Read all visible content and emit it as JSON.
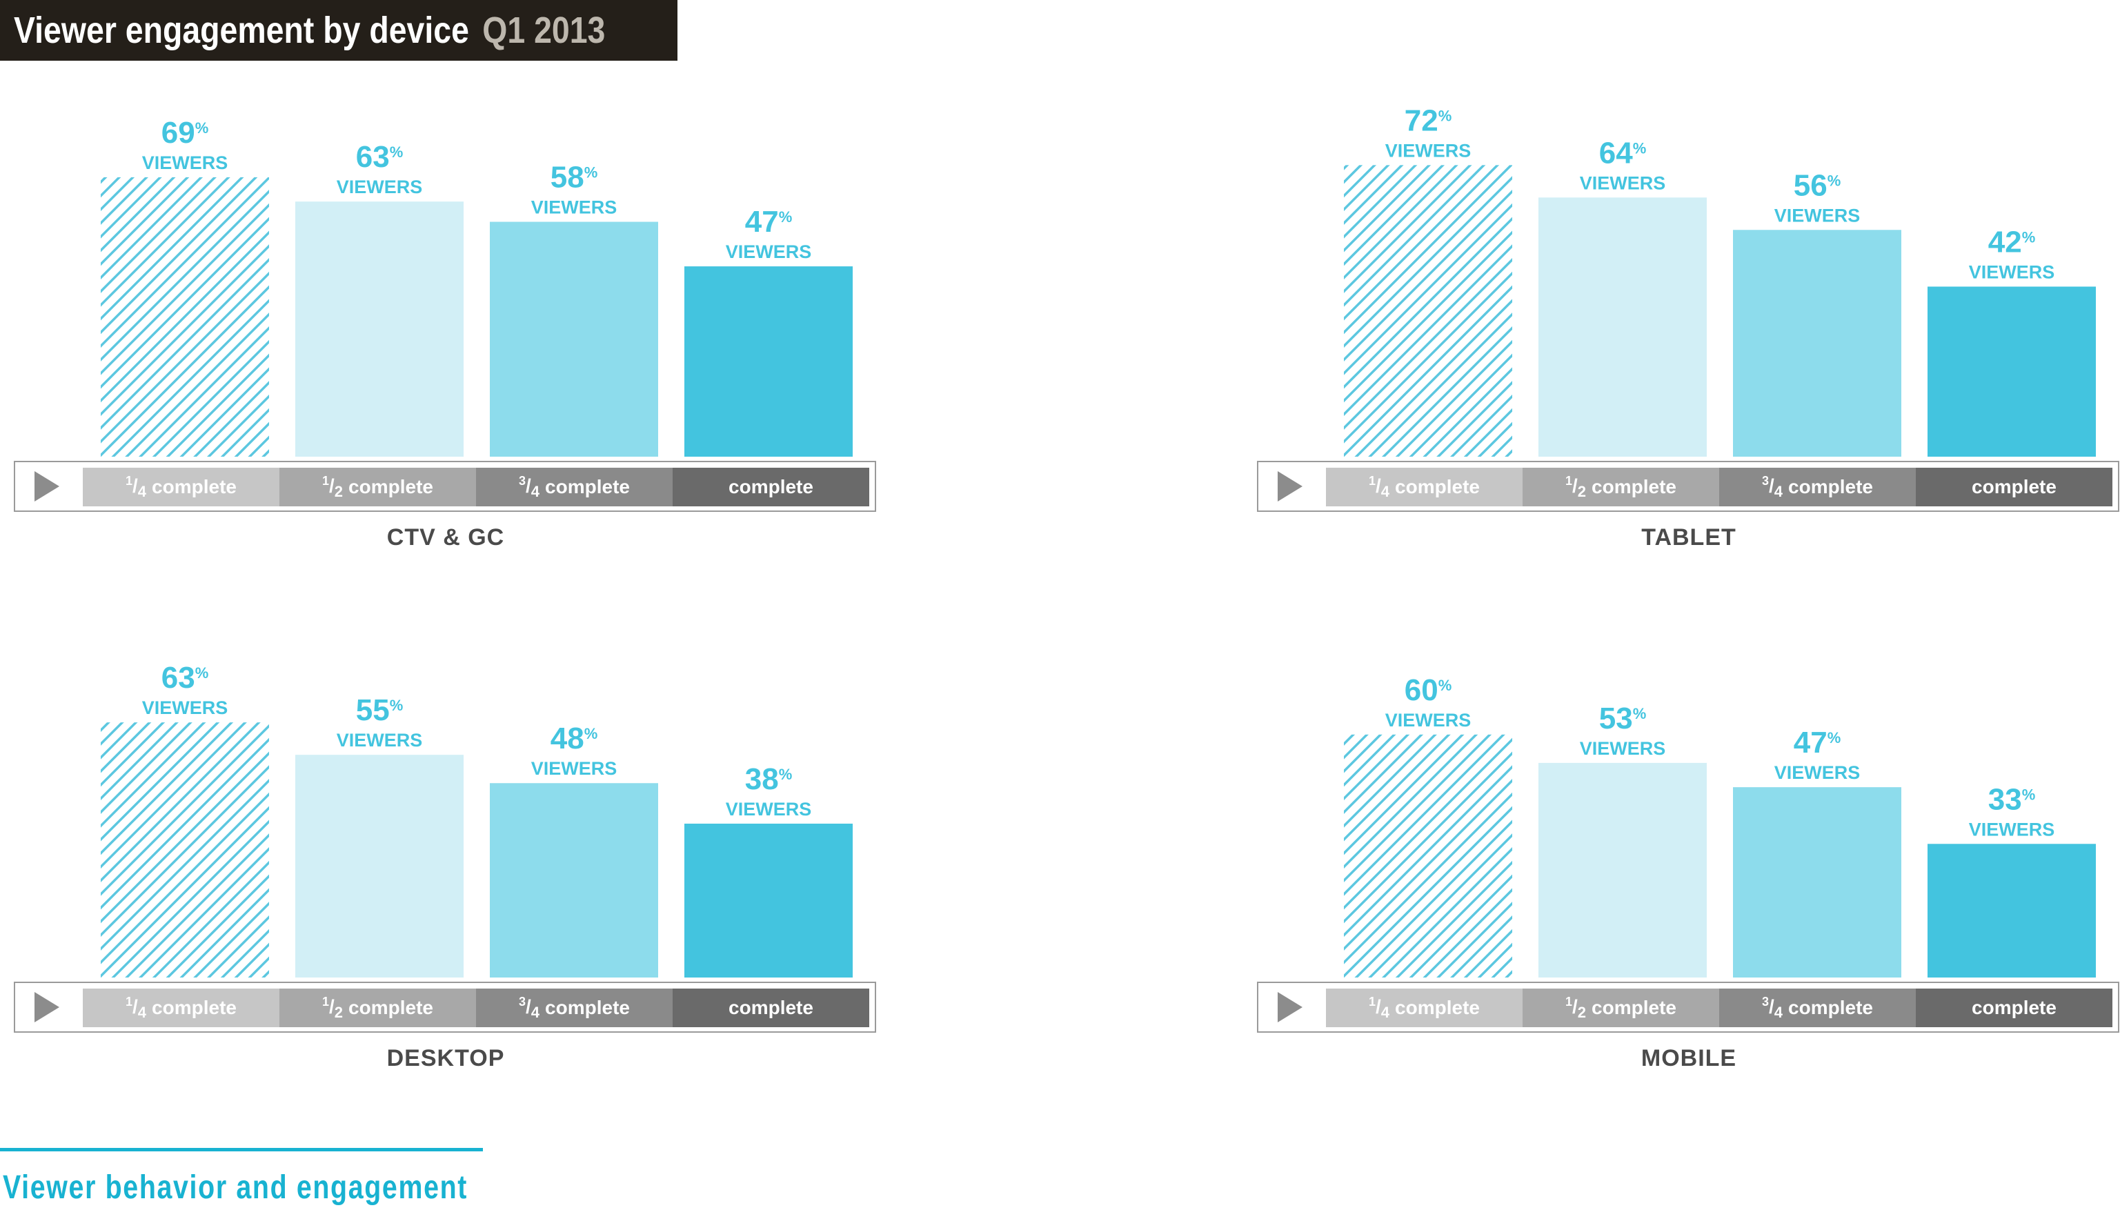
{
  "title": {
    "main": "Viewer engagement by device",
    "accent": "Q1 2013"
  },
  "footer": "Viewer behavior and engagement",
  "value_suffix": "%",
  "value_caption": "VIEWERS",
  "colors": {
    "quarter_stripe": "#5cc7e0",
    "half": "#d2eff6",
    "three_quarter": "#8ddcec",
    "complete": "#43c4df",
    "value_text": "#43c4df"
  },
  "progress_labels": [
    {
      "num": "1",
      "den": "4",
      "text": "complete"
    },
    {
      "num": "1",
      "den": "2",
      "text": "complete"
    },
    {
      "num": "3",
      "den": "4",
      "text": "complete"
    },
    {
      "num": "",
      "den": "",
      "text": "complete"
    }
  ],
  "chart_data": [
    {
      "type": "bar",
      "device": "CTV & GC",
      "categories": [
        "1/4 complete",
        "1/2 complete",
        "3/4 complete",
        "complete"
      ],
      "values": [
        69,
        63,
        58,
        47
      ],
      "ylim": [
        0,
        100
      ]
    },
    {
      "type": "bar",
      "device": "TABLET",
      "categories": [
        "1/4 complete",
        "1/2 complete",
        "3/4 complete",
        "complete"
      ],
      "values": [
        72,
        64,
        56,
        42
      ],
      "ylim": [
        0,
        100
      ]
    },
    {
      "type": "bar",
      "device": "DESKTOP",
      "categories": [
        "1/4 complete",
        "1/2 complete",
        "3/4 complete",
        "complete"
      ],
      "values": [
        63,
        55,
        48,
        38
      ],
      "ylim": [
        0,
        100
      ]
    },
    {
      "type": "bar",
      "device": "MOBILE",
      "categories": [
        "1/4 complete",
        "1/2 complete",
        "3/4 complete",
        "complete"
      ],
      "values": [
        60,
        53,
        47,
        33
      ],
      "ylim": [
        0,
        100
      ]
    }
  ]
}
